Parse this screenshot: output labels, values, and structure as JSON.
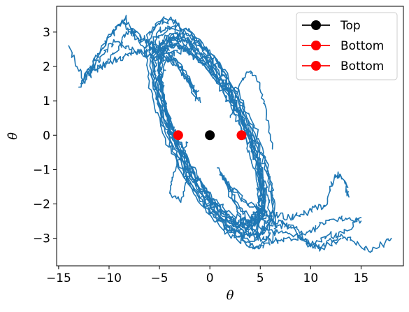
{
  "chart_data": {
    "type": "line",
    "title": "",
    "xlabel": "θ",
    "ylabel": "θ̇",
    "xlim": [
      -15.2,
      19.2
    ],
    "ylim": [
      -3.8,
      3.75
    ],
    "xticks": [
      -15,
      -10,
      -5,
      0,
      5,
      10,
      15
    ],
    "yticks": [
      -3,
      -2,
      -1,
      0,
      1,
      2,
      3
    ],
    "xtick_labels": [
      "−15",
      "−10",
      "−5",
      "0",
      "5",
      "10",
      "15"
    ],
    "ytick_labels": [
      "−3",
      "−2",
      "−1",
      "0",
      "1",
      "2",
      "3"
    ],
    "grid": false,
    "legend_position": "top-right",
    "trajectory_color": "#1f77b4",
    "series": [
      {
        "name": "",
        "style": "line",
        "color": "#1f77b4",
        "description_points": [
          [
            -14.0,
            2.6
          ],
          [
            -13.0,
            2.2
          ],
          [
            -11.5,
            1.9
          ],
          [
            -10.0,
            2.4
          ],
          [
            -8.5,
            3.3
          ],
          [
            -7.0,
            2.9
          ],
          [
            -6.0,
            2.5
          ],
          [
            -5.0,
            2.4
          ],
          [
            -3.5,
            2.3
          ],
          [
            -2.0,
            1.9
          ],
          [
            -1.0,
            1.2
          ],
          [
            0.0,
            0.0
          ],
          [
            1.0,
            -1.2
          ],
          [
            2.0,
            -2.0
          ],
          [
            3.0,
            -2.5
          ],
          [
            4.5,
            -2.6
          ],
          [
            6.0,
            -2.7
          ],
          [
            8.0,
            -2.9
          ],
          [
            10.0,
            -3.2
          ],
          [
            12.0,
            -3.0
          ],
          [
            14.0,
            -3.1
          ],
          [
            16.0,
            -3.3
          ],
          [
            18.0,
            -3.0
          ]
        ]
      },
      {
        "name": "Top",
        "style": "marker",
        "color": "#000000",
        "points": [
          [
            0,
            0
          ]
        ]
      },
      {
        "name": "Bottom",
        "style": "marker",
        "color": "#ff0000",
        "points": [
          [
            -3.1416,
            0
          ]
        ]
      },
      {
        "name": "Bottom",
        "style": "marker",
        "color": "#ff0000",
        "points": [
          [
            3.1416,
            0
          ]
        ]
      }
    ],
    "legend": [
      {
        "label": "Top",
        "color": "#000000"
      },
      {
        "label": "Bottom",
        "color": "#ff0000"
      },
      {
        "label": "Bottom",
        "color": "#ff0000"
      }
    ]
  }
}
